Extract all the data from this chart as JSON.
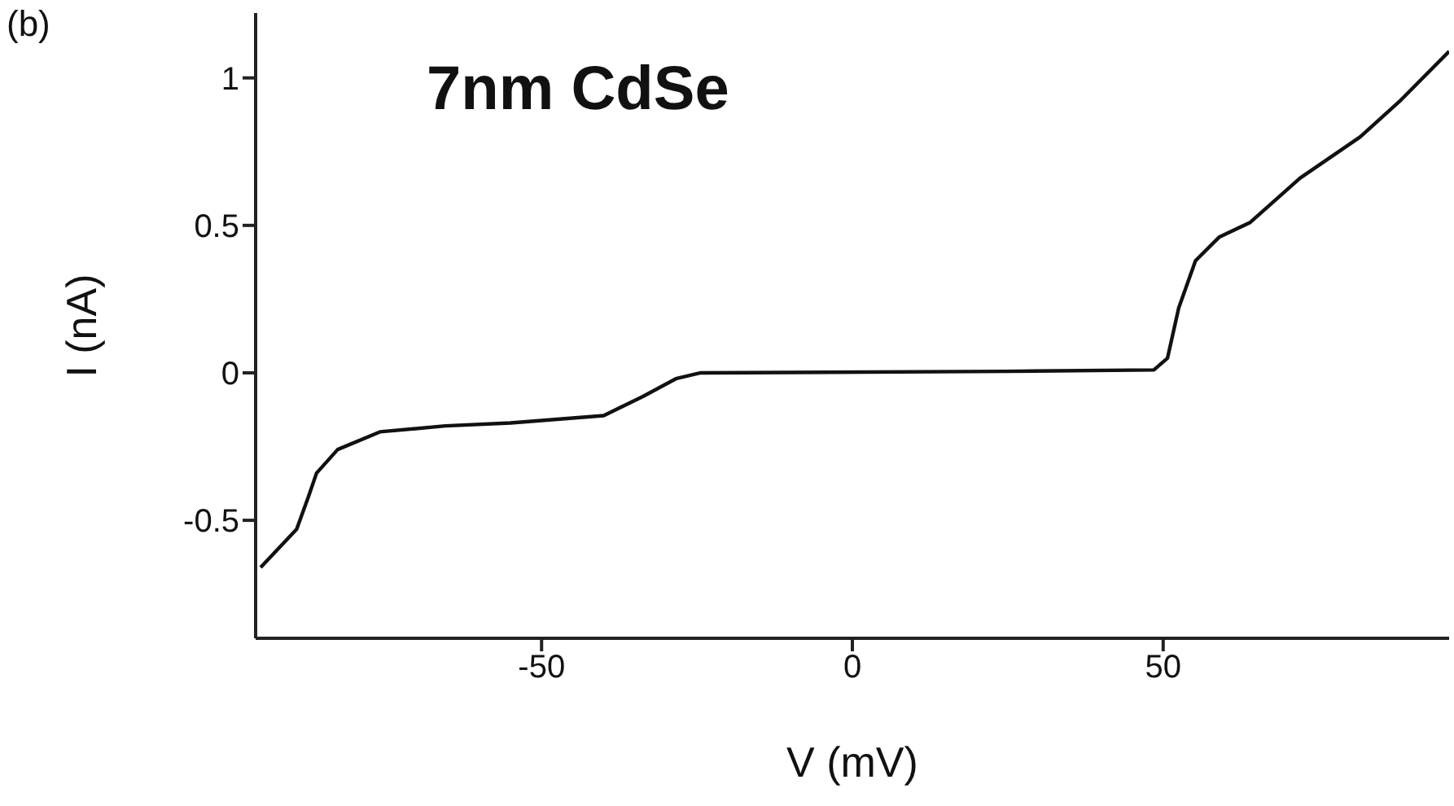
{
  "chart_data": {
    "type": "line",
    "xlabel": "V (mV)",
    "ylabel": "I (nA)",
    "annotations": [
      "(b)",
      "7nm CdSe"
    ],
    "xlim": [
      -96,
      96
    ],
    "ylim": [
      -0.9,
      1.22
    ],
    "xticks": [
      -50,
      0,
      50
    ],
    "yticks": [
      -0.5,
      0,
      0.5,
      1
    ],
    "grid": false,
    "legend": false,
    "marker": "none",
    "line_style": "solid",
    "x": [
      -95.2,
      -89.4,
      -87.5,
      -86.2,
      -82.8,
      -76,
      -65.5,
      -55,
      -40,
      -33.7,
      -28.4,
      -24.4,
      24.7,
      48.5,
      50.7,
      52.5,
      55.2,
      59,
      64,
      72,
      81.7,
      88,
      96
    ],
    "series": [
      {
        "color": "#111111",
        "values": [
          -0.66,
          -0.53,
          -0.42,
          -0.34,
          -0.26,
          -0.2,
          -0.18,
          -0.17,
          -0.145,
          -0.08,
          -0.02,
          0,
          0.005,
          0.01,
          0.05,
          0.22,
          0.38,
          0.46,
          0.51,
          0.66,
          0.8,
          0.92,
          1.09
        ]
      }
    ]
  }
}
